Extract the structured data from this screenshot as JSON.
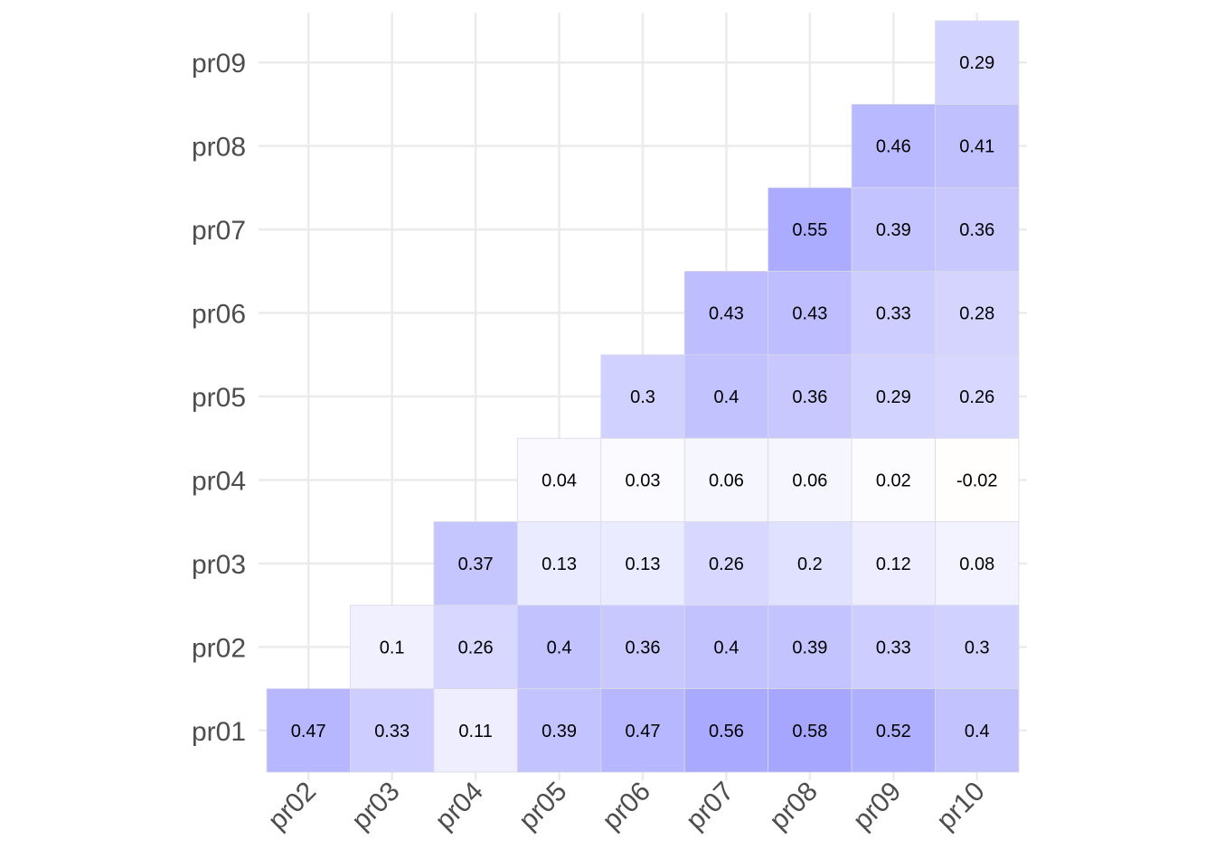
{
  "chart_data": {
    "type": "heatmap",
    "title": "",
    "xlabel": "",
    "ylabel": "",
    "x_categories": [
      "pr02",
      "pr03",
      "pr04",
      "pr05",
      "pr06",
      "pr07",
      "pr08",
      "pr09",
      "pr10"
    ],
    "y_categories": [
      "pr01",
      "pr02",
      "pr03",
      "pr04",
      "pr05",
      "pr06",
      "pr07",
      "pr08",
      "pr09"
    ],
    "value_range": [
      -1,
      1
    ],
    "colors": {
      "low": "#ffa500",
      "mid": "#ffffff",
      "high": "#0000ff",
      "label": "#000000",
      "grid": "#ebebeb",
      "axis_text": "#4d4d4d"
    },
    "cells": [
      {
        "x": "pr02",
        "y": "pr01",
        "value": 0.47
      },
      {
        "x": "pr03",
        "y": "pr01",
        "value": 0.33
      },
      {
        "x": "pr04",
        "y": "pr01",
        "value": 0.11
      },
      {
        "x": "pr05",
        "y": "pr01",
        "value": 0.39
      },
      {
        "x": "pr06",
        "y": "pr01",
        "value": 0.47
      },
      {
        "x": "pr07",
        "y": "pr01",
        "value": 0.56
      },
      {
        "x": "pr08",
        "y": "pr01",
        "value": 0.58
      },
      {
        "x": "pr09",
        "y": "pr01",
        "value": 0.52
      },
      {
        "x": "pr10",
        "y": "pr01",
        "value": 0.4
      },
      {
        "x": "pr03",
        "y": "pr02",
        "value": 0.1
      },
      {
        "x": "pr04",
        "y": "pr02",
        "value": 0.26
      },
      {
        "x": "pr05",
        "y": "pr02",
        "value": 0.4
      },
      {
        "x": "pr06",
        "y": "pr02",
        "value": 0.36
      },
      {
        "x": "pr07",
        "y": "pr02",
        "value": 0.4
      },
      {
        "x": "pr08",
        "y": "pr02",
        "value": 0.39
      },
      {
        "x": "pr09",
        "y": "pr02",
        "value": 0.33
      },
      {
        "x": "pr10",
        "y": "pr02",
        "value": 0.3
      },
      {
        "x": "pr04",
        "y": "pr03",
        "value": 0.37
      },
      {
        "x": "pr05",
        "y": "pr03",
        "value": 0.13
      },
      {
        "x": "pr06",
        "y": "pr03",
        "value": 0.13
      },
      {
        "x": "pr07",
        "y": "pr03",
        "value": 0.26
      },
      {
        "x": "pr08",
        "y": "pr03",
        "value": 0.2
      },
      {
        "x": "pr09",
        "y": "pr03",
        "value": 0.12
      },
      {
        "x": "pr10",
        "y": "pr03",
        "value": 0.08
      },
      {
        "x": "pr05",
        "y": "pr04",
        "value": 0.04
      },
      {
        "x": "pr06",
        "y": "pr04",
        "value": 0.03
      },
      {
        "x": "pr07",
        "y": "pr04",
        "value": 0.06
      },
      {
        "x": "pr08",
        "y": "pr04",
        "value": 0.06
      },
      {
        "x": "pr09",
        "y": "pr04",
        "value": 0.02
      },
      {
        "x": "pr10",
        "y": "pr04",
        "value": -0.02
      },
      {
        "x": "pr06",
        "y": "pr05",
        "value": 0.3
      },
      {
        "x": "pr07",
        "y": "pr05",
        "value": 0.4
      },
      {
        "x": "pr08",
        "y": "pr05",
        "value": 0.36
      },
      {
        "x": "pr09",
        "y": "pr05",
        "value": 0.29
      },
      {
        "x": "pr10",
        "y": "pr05",
        "value": 0.26
      },
      {
        "x": "pr07",
        "y": "pr06",
        "value": 0.43
      },
      {
        "x": "pr08",
        "y": "pr06",
        "value": 0.43
      },
      {
        "x": "pr09",
        "y": "pr06",
        "value": 0.33
      },
      {
        "x": "pr10",
        "y": "pr06",
        "value": 0.28
      },
      {
        "x": "pr08",
        "y": "pr07",
        "value": 0.55
      },
      {
        "x": "pr09",
        "y": "pr07",
        "value": 0.39
      },
      {
        "x": "pr10",
        "y": "pr07",
        "value": 0.36
      },
      {
        "x": "pr09",
        "y": "pr08",
        "value": 0.46
      },
      {
        "x": "pr10",
        "y": "pr08",
        "value": 0.41
      },
      {
        "x": "pr10",
        "y": "pr09",
        "value": 0.29
      }
    ]
  }
}
